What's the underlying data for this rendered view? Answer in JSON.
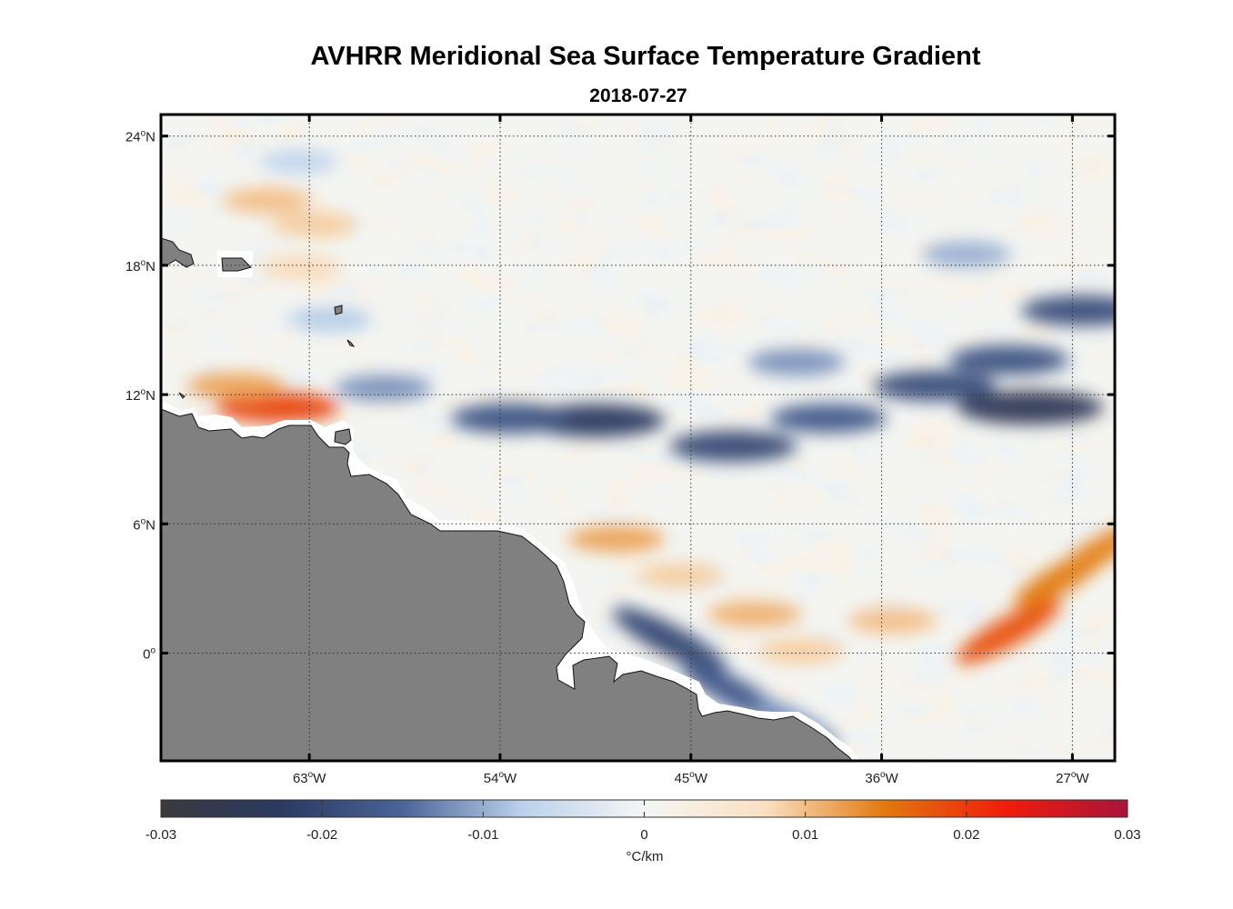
{
  "title": "AVHRR Meridional Sea Surface Temperature Gradient",
  "subtitle": "2018-07-27",
  "map": {
    "lat_range": [
      -5,
      25
    ],
    "lon_range": [
      -70,
      -25
    ],
    "lat_ticks": [
      {
        "value": 24,
        "deg": "24",
        "hemi": "N"
      },
      {
        "value": 18,
        "deg": "18",
        "hemi": "N"
      },
      {
        "value": 12,
        "deg": "12",
        "hemi": "N"
      },
      {
        "value": 6,
        "deg": "6",
        "hemi": "N"
      },
      {
        "value": 0,
        "deg": "0",
        "hemi": ""
      }
    ],
    "lon_ticks": [
      {
        "value": -63,
        "deg": "63",
        "hemi": "W"
      },
      {
        "value": -54,
        "deg": "54",
        "hemi": "W"
      },
      {
        "value": -45,
        "deg": "45",
        "hemi": "W"
      },
      {
        "value": -36,
        "deg": "36",
        "hemi": "W"
      },
      {
        "value": -27,
        "deg": "27",
        "hemi": "W"
      }
    ],
    "land_color": "#808080",
    "grid": true
  },
  "colorbar": {
    "min": -0.03,
    "max": 0.03,
    "ticks": [
      "-0.03",
      "-0.02",
      "-0.01",
      "0",
      "0.01",
      "0.02",
      "0.03"
    ],
    "unit_label": "°C/km",
    "colors": [
      "#3a3a3e",
      "#2a3a62",
      "#4a6498",
      "#bcd2ec",
      "#f4f6f4",
      "#fbe0c2",
      "#e2780e",
      "#f01c0c",
      "#a8143a"
    ]
  },
  "chart_data": {
    "type": "heatmap",
    "title": "AVHRR Meridional Sea Surface Temperature Gradient",
    "subtitle": "2018-07-27",
    "xlabel": "",
    "ylabel": "",
    "xlim": [
      -70,
      -25
    ],
    "ylim": [
      -5,
      25
    ],
    "value_range": [
      -0.03,
      0.03
    ],
    "unit": "°C/km",
    "features": [
      {
        "kind": "positive",
        "lon": -64.5,
        "lat": 11.4,
        "value": 0.019
      },
      {
        "kind": "positive",
        "lon": -66.5,
        "lat": 12.4,
        "value": 0.012
      },
      {
        "kind": "positive",
        "lon": -65.0,
        "lat": 21.0,
        "value": 0.01
      },
      {
        "kind": "positive",
        "lon": -62.8,
        "lat": 19.9,
        "value": 0.009
      },
      {
        "kind": "positive",
        "lon": -63.4,
        "lat": 17.9,
        "value": 0.008
      },
      {
        "kind": "positive",
        "lon": -48.5,
        "lat": 5.3,
        "value": 0.012
      },
      {
        "kind": "positive",
        "lon": -42.0,
        "lat": 1.8,
        "value": 0.011
      },
      {
        "kind": "positive",
        "lon": -35.5,
        "lat": 1.5,
        "value": 0.01
      },
      {
        "kind": "positive",
        "lon": -30.0,
        "lat": 1.0,
        "value": 0.018
      },
      {
        "kind": "positive",
        "lon": -27.5,
        "lat": 3.5,
        "value": 0.015
      },
      {
        "kind": "positive",
        "lon": -25.6,
        "lat": 4.8,
        "value": 0.014
      },
      {
        "kind": "positive",
        "lon": -45.5,
        "lat": 3.6,
        "value": 0.009
      },
      {
        "kind": "positive",
        "lon": -39.8,
        "lat": 0.1,
        "value": 0.009
      },
      {
        "kind": "negative",
        "lon": -49.5,
        "lat": 10.8,
        "value": -0.023
      },
      {
        "kind": "negative",
        "lon": -53.5,
        "lat": 10.9,
        "value": -0.018
      },
      {
        "kind": "negative",
        "lon": -43.0,
        "lat": 9.6,
        "value": -0.02
      },
      {
        "kind": "negative",
        "lon": -38.5,
        "lat": 10.9,
        "value": -0.017
      },
      {
        "kind": "negative",
        "lon": -33.5,
        "lat": 12.4,
        "value": -0.019
      },
      {
        "kind": "negative",
        "lon": -29.0,
        "lat": 11.4,
        "value": -0.025
      },
      {
        "kind": "negative",
        "lon": -30.0,
        "lat": 13.6,
        "value": -0.018
      },
      {
        "kind": "negative",
        "lon": -26.5,
        "lat": 15.9,
        "value": -0.019
      },
      {
        "kind": "negative",
        "lon": -46.0,
        "lat": 0.6,
        "value": -0.02
      },
      {
        "kind": "negative",
        "lon": -43.0,
        "lat": -1.8,
        "value": -0.017
      },
      {
        "kind": "negative",
        "lon": -40.0,
        "lat": -3.3,
        "value": -0.012
      },
      {
        "kind": "negative",
        "lon": -59.5,
        "lat": 12.3,
        "value": -0.012
      },
      {
        "kind": "negative",
        "lon": -40.0,
        "lat": 13.5,
        "value": -0.012
      },
      {
        "kind": "negative",
        "lon": -32.0,
        "lat": 18.5,
        "value": -0.01
      },
      {
        "kind": "negative",
        "lon": -62.0,
        "lat": 15.5,
        "value": -0.008
      },
      {
        "kind": "negative",
        "lon": -63.5,
        "lat": 22.8,
        "value": -0.007
      }
    ]
  }
}
